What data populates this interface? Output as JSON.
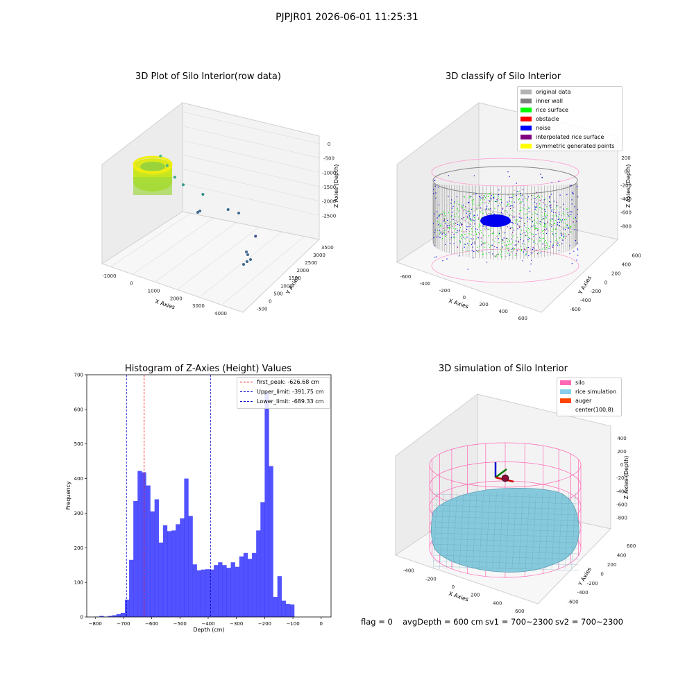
{
  "suptitle": "PJPJR01 2026-06-01 11:25:31",
  "chart_data": [
    {
      "type": "scatter",
      "subtype": "3d",
      "title": "3D Plot of Silo Interior(row data)",
      "xlabel": "X Axies",
      "ylabel": "Y Axies",
      "zlabel": "Z Axies (Depth)",
      "xticks": [
        "-1000",
        "0",
        "1000",
        "2000",
        "3000",
        "4000"
      ],
      "yticks": [
        "-500",
        "0",
        "500",
        "1000",
        "1500",
        "2000",
        "2500",
        "3000",
        "3500"
      ],
      "zticks": [
        "0",
        "-500",
        "-1000",
        "-1500",
        "-2000",
        "-2500"
      ],
      "colormap": "viridis",
      "outliers": [
        {
          "x": 150,
          "y": 1400,
          "z": -900
        },
        {
          "x": 400,
          "y": 1200,
          "z": -1050
        },
        {
          "x": 700,
          "y": 900,
          "z": -1200
        },
        {
          "x": 1000,
          "y": 800,
          "z": -1350
        },
        {
          "x": 1700,
          "y": 600,
          "z": -1500
        },
        {
          "x": 2600,
          "y": 300,
          "z": -1750
        },
        {
          "x": 3600,
          "y": -200,
          "z": -2200
        }
      ]
    },
    {
      "type": "scatter",
      "subtype": "3d",
      "title": "3D classify of Silo Interior",
      "xlabel": "X Axies",
      "ylabel": "Y Axies",
      "zlabel": "Z Axies (Depth)",
      "xticks": [
        "-600",
        "-400",
        "-200",
        "0",
        "200",
        "400",
        "600"
      ],
      "yticks": [
        "-600",
        "-400",
        "-200",
        "0",
        "200",
        "400",
        "600"
      ],
      "zticks": [
        "200",
        "0",
        "-200",
        "-400",
        "-600",
        "-800"
      ],
      "legend": [
        {
          "label": "original data",
          "color": "#b3b3b3"
        },
        {
          "label": "inner wall",
          "color": "#808080"
        },
        {
          "label": "rice surface",
          "color": "#00ff00"
        },
        {
          "label": "obstacle",
          "color": "#ff0000"
        },
        {
          "label": "noise",
          "color": "#0000ff"
        },
        {
          "label": "interpolated rice surface",
          "color": "#800080"
        },
        {
          "label": "symmetric generated points",
          "color": "#ffff00"
        }
      ],
      "legend_loc": "upper right"
    },
    {
      "type": "bar",
      "subtype": "histogram",
      "title": "Histogram of Z-Axies (Height) Values",
      "xlabel": "Depth (cm)",
      "ylabel": "Frequency",
      "xlim": [
        -830,
        35
      ],
      "ylim": [
        0,
        700
      ],
      "xticks": [
        -800,
        -700,
        -600,
        -500,
        -400,
        -300,
        -200,
        -100,
        0
      ],
      "yticks": [
        0,
        100,
        200,
        300,
        400,
        500,
        600,
        700
      ],
      "bin_start": -800,
      "bin_width": 15,
      "values": [
        1,
        3,
        1,
        3,
        5,
        8,
        12,
        50,
        165,
        335,
        422,
        418,
        380,
        305,
        340,
        215,
        265,
        248,
        250,
        268,
        285,
        400,
        292,
        152,
        135,
        137,
        138,
        137,
        150,
        158,
        150,
        142,
        158,
        145,
        175,
        185,
        168,
        185,
        250,
        332,
        650,
        436,
        58,
        118,
        47,
        38,
        36
      ],
      "bar_color": "#0000ff",
      "lines": [
        {
          "label": "first_peak: -626.68 cm",
          "x": -626.68,
          "color": "#ff0000"
        },
        {
          "label": "Upper_limit: -391.75 cm",
          "x": -391.75,
          "color": "#0000cc"
        },
        {
          "label": "Lower_limit: -689.33 cm",
          "x": -689.33,
          "color": "#0000cc"
        }
      ],
      "legend_loc": "upper right"
    },
    {
      "type": "area",
      "subtype": "3d surface",
      "title": "3D simulation of Silo Interior",
      "xlabel": "X Axies",
      "ylabel": "Y Axies",
      "zlabel": "Z Axies (Depth)",
      "xticks": [
        "-400",
        "-200",
        "0",
        "200",
        "400",
        "600"
      ],
      "yticks": [
        "-600",
        "-400",
        "-200",
        "0",
        "200",
        "400",
        "600"
      ],
      "zticks": [
        "400",
        "200",
        "0",
        "-200",
        "-400",
        "-600",
        "-800"
      ],
      "legend": [
        {
          "label": "silo",
          "color": "#ff69b4"
        },
        {
          "label": "rice simulation",
          "color": "#87ceeb"
        },
        {
          "label": "auger",
          "color": "#ff4500"
        },
        {
          "label": "center(100,8)",
          "color": "#ffffff"
        }
      ],
      "legend_loc": "upper right"
    }
  ],
  "footer": {
    "flag": "flag = 0",
    "avg": "avgDepth = 600 cm",
    "sv1": "sv1 = 700~2300",
    "sv2": "sv2 = 700~2300"
  }
}
